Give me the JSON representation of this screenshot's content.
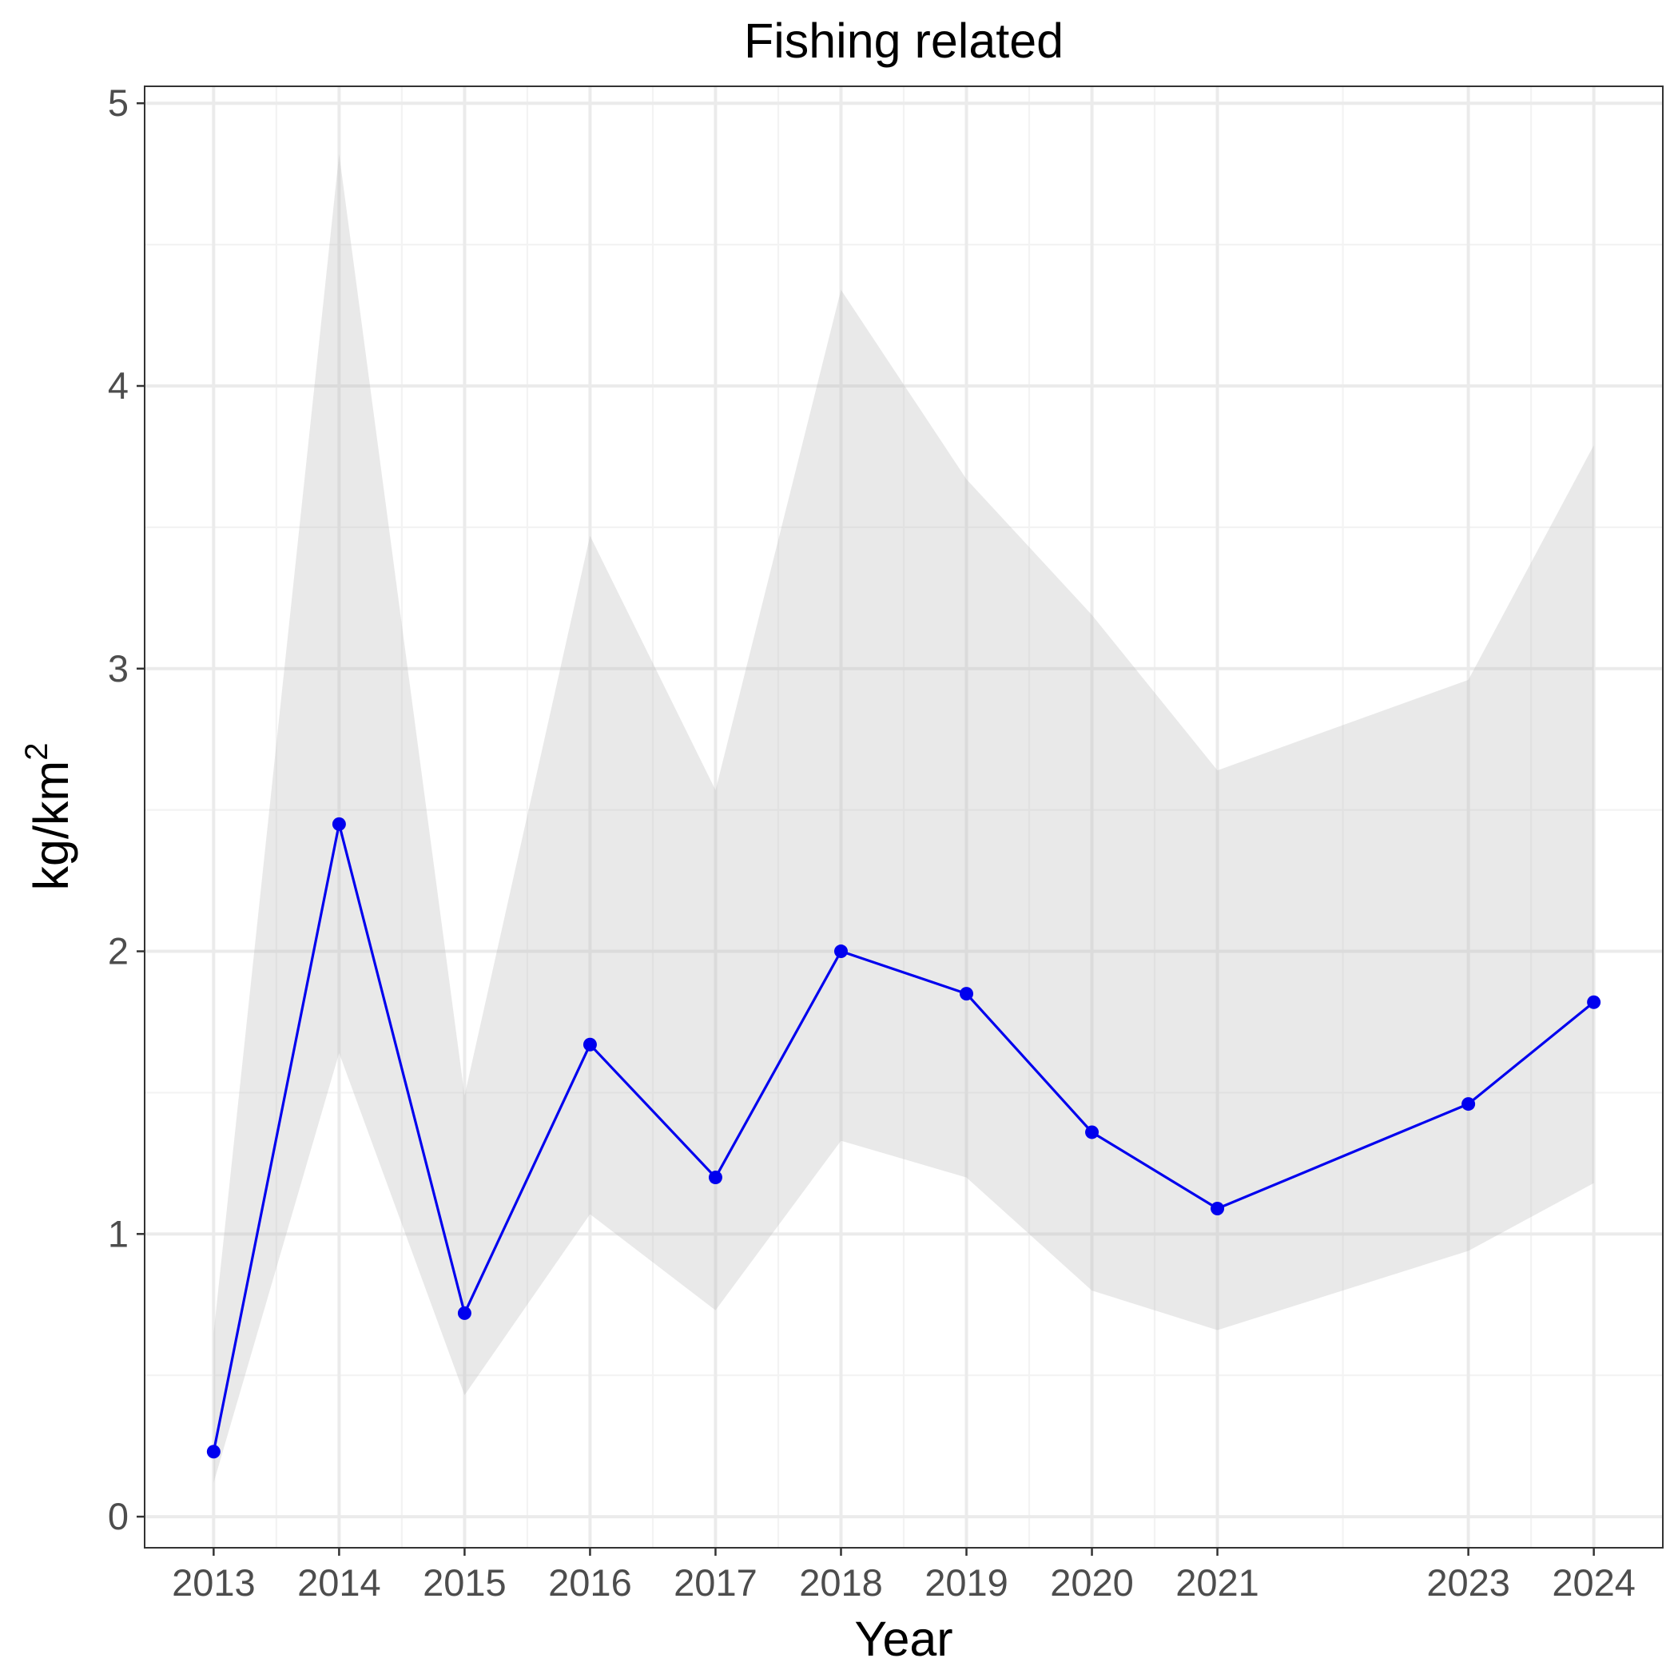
{
  "chart_data": {
    "type": "line",
    "title": "Fishing related",
    "xlabel": "Year",
    "ylabel": {
      "base": "kg/km",
      "superscript": "2"
    },
    "x_ticks": [
      2013,
      2014,
      2015,
      2016,
      2017,
      2018,
      2019,
      2020,
      2021,
      2023,
      2024
    ],
    "y_ticks": [
      0,
      1,
      2,
      3,
      4,
      5
    ],
    "xlim": [
      2012.45,
      2024.55
    ],
    "ylim": [
      -0.11,
      5.06
    ],
    "grid": true,
    "legend": "none",
    "series": [
      {
        "x": [
          2013,
          2014,
          2015,
          2016,
          2017,
          2018,
          2019,
          2020,
          2021,
          2023,
          2024
        ],
        "y": [
          0.23,
          2.45,
          0.72,
          1.67,
          1.2,
          2.0,
          1.85,
          1.36,
          1.09,
          1.46,
          1.82
        ],
        "ci_upper": [
          0.65,
          4.82,
          1.49,
          3.47,
          2.57,
          4.34,
          3.67,
          3.19,
          2.64,
          2.96,
          3.79
        ],
        "ci_lower": [
          0.12,
          1.64,
          0.43,
          1.07,
          0.73,
          1.33,
          1.2,
          0.8,
          0.66,
          0.94,
          1.18
        ]
      }
    ],
    "colors": {
      "line": "#0000ee",
      "point": "#0000ee",
      "ribbon": "#e8e8e8",
      "grid_major": "#ebebeb",
      "grid_minor": "#f3f3f3",
      "panel_border": "#333333"
    }
  }
}
